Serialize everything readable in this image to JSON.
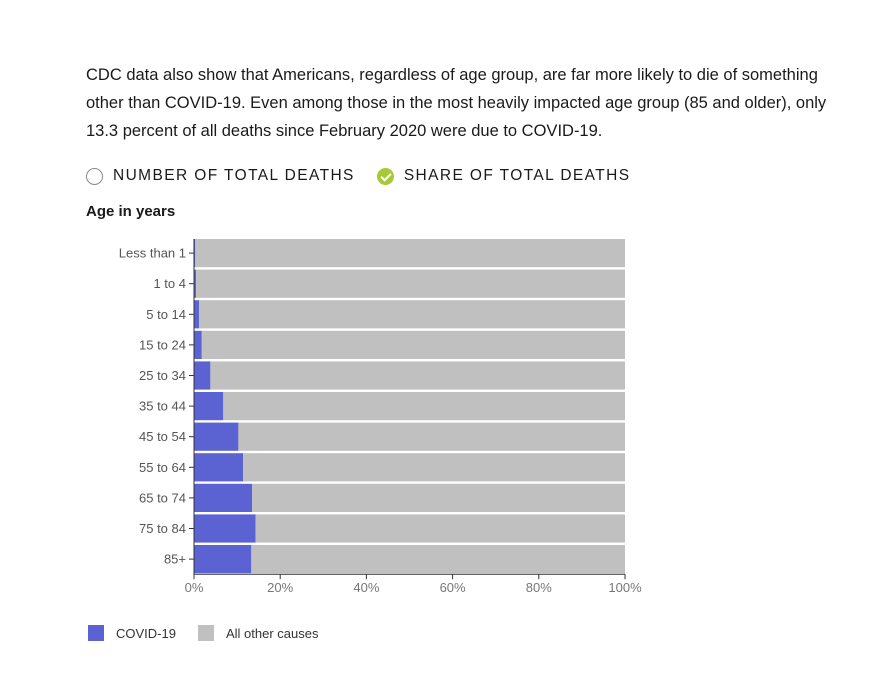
{
  "intro": "CDC data also show that Americans, regardless of age group, are far more likely to die of something other than COVID-19. Even among those in the most heavily impacted age group (85 and older), only 13.3 percent of all deaths since February 2020 were due to COVID-19.",
  "toggles": [
    {
      "label": "NUMBER OF TOTAL DEATHS",
      "checked": false
    },
    {
      "label": "SHARE OF TOTAL DEATHS",
      "checked": true
    }
  ],
  "colors": {
    "covid": "#5b63d3",
    "other": "#c0c0c0",
    "check": "#a8c83a"
  },
  "chart_data": {
    "type": "bar",
    "orientation": "horizontal",
    "stacked": true,
    "ylabel": "Age in years",
    "categories": [
      "Less than 1",
      "1 to 4",
      "5 to 14",
      "15 to 24",
      "25 to 34",
      "35 to 44",
      "45 to 54",
      "55 to 64",
      "65 to 74",
      "75 to 84",
      "85+"
    ],
    "series": [
      {
        "name": "COVID-19",
        "values": [
          0.3,
          0.5,
          1.2,
          1.8,
          3.8,
          6.8,
          10.3,
          11.4,
          13.5,
          14.3,
          13.3
        ]
      },
      {
        "name": "All other causes",
        "values": [
          99.7,
          99.5,
          98.8,
          98.2,
          96.2,
          93.2,
          89.7,
          88.6,
          86.5,
          85.7,
          86.7
        ]
      }
    ],
    "xlim": [
      0,
      100
    ],
    "xticks": [
      "0%",
      "20%",
      "40%",
      "60%",
      "80%",
      "100%"
    ],
    "grid": false,
    "legend": "bottom-left"
  }
}
